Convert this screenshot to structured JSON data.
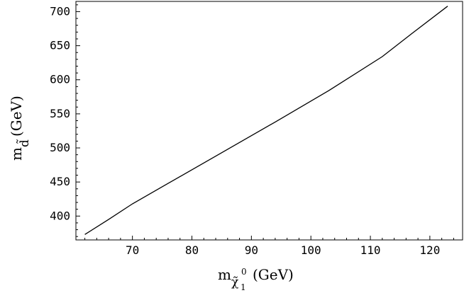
{
  "chart_data": {
    "type": "line",
    "xlabel": {
      "main": "m",
      "subscript": "χ̃",
      "subsub": "1",
      "superscript": "0",
      "units": "(GeV)"
    },
    "ylabel": {
      "main": "m",
      "subscript": "d̃",
      "units": "(GeV)"
    },
    "xlim": [
      60.5,
      125.5
    ],
    "ylim": [
      365,
      715
    ],
    "xticks": [
      70,
      80,
      90,
      100,
      110,
      120
    ],
    "yticks": [
      400,
      450,
      500,
      550,
      600,
      650,
      700
    ],
    "series": [
      {
        "x": [
          62,
          66,
          70,
          76,
          85,
          94,
          103,
          112,
          117,
          123
        ],
        "y": [
          373,
          395,
          418,
          448,
          493,
          538,
          584,
          634,
          668,
          708
        ]
      }
    ]
  }
}
